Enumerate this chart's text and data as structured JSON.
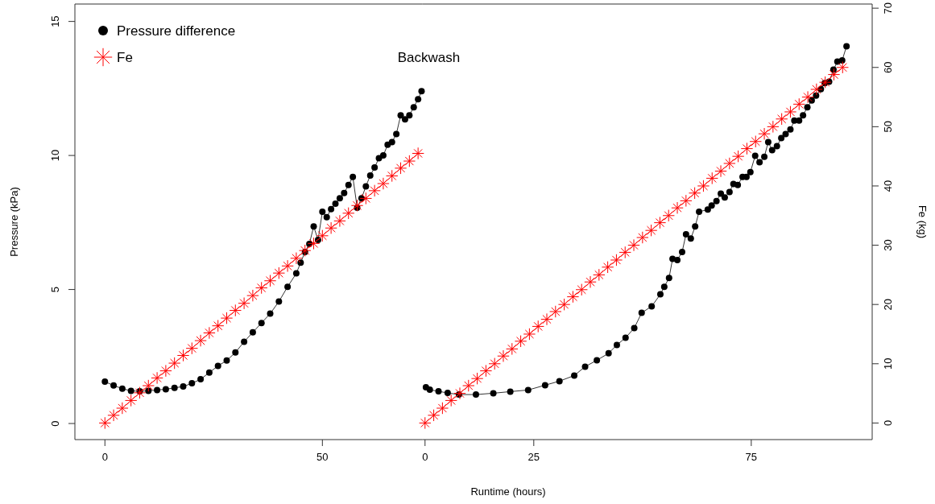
{
  "chart_data": [
    {
      "type": "line",
      "xlabel": "Runtime (hours)",
      "ylabel": "Pressure (kPa)",
      "xlim": [
        -6.9,
        73.0
      ],
      "xticks": [
        0,
        50
      ],
      "ylim": [
        -0.6,
        15.65
      ],
      "yticks": [
        0,
        5,
        10,
        15
      ],
      "y2lim": [
        -2.8,
        70.7
      ],
      "legend": "top left",
      "line_style": "solid",
      "series": [
        {
          "name": "Pressure difference",
          "color": "#000000",
          "marker": "circle",
          "x": [
            0,
            2,
            4,
            6,
            8,
            10,
            12,
            14,
            16,
            18,
            20,
            22,
            24,
            26,
            28,
            30,
            32,
            34,
            36,
            38,
            40,
            42,
            44,
            45,
            46,
            47,
            48,
            49,
            50,
            51,
            52,
            53,
            54,
            55,
            56,
            57,
            58,
            59,
            60,
            61,
            62,
            63,
            64,
            65,
            66,
            67,
            68,
            69,
            70,
            71,
            72,
            72.8
          ],
          "values": [
            1.56,
            1.42,
            1.3,
            1.22,
            1.2,
            1.22,
            1.25,
            1.28,
            1.33,
            1.38,
            1.5,
            1.65,
            1.9,
            2.15,
            2.35,
            2.65,
            3.05,
            3.4,
            3.75,
            4.1,
            4.55,
            5.1,
            5.6,
            6.0,
            6.4,
            6.7,
            7.35,
            6.85,
            7.9,
            7.7,
            8.0,
            8.2,
            8.4,
            8.6,
            8.9,
            9.2,
            8.05,
            8.4,
            8.85,
            9.25,
            9.55,
            9.9,
            10.0,
            10.4,
            10.5,
            10.8,
            11.5,
            11.35,
            11.5,
            11.8,
            12.1,
            12.4
          ]
        },
        {
          "name": "Fe",
          "color": "#ff0000",
          "marker": "cross",
          "axis": "y2",
          "x": [
            0,
            2,
            4,
            6,
            8,
            10,
            12,
            14,
            16,
            18,
            20,
            22,
            24,
            26,
            28,
            30,
            32,
            34,
            36,
            38,
            40,
            42,
            44,
            46,
            48,
            50,
            52,
            54,
            56,
            58,
            60,
            62,
            64,
            66,
            68,
            70,
            72
          ],
          "values": [
            0,
            1.3,
            2.5,
            3.8,
            5.1,
            6.3,
            7.6,
            8.8,
            10.1,
            11.4,
            12.6,
            13.9,
            15.2,
            16.4,
            17.7,
            19.0,
            20.2,
            21.5,
            22.8,
            24.0,
            25.3,
            26.5,
            27.8,
            29.1,
            30.3,
            31.6,
            32.9,
            34.1,
            35.4,
            36.7,
            37.9,
            39.2,
            40.4,
            41.7,
            43.0,
            44.2,
            45.5
          ]
        }
      ]
    },
    {
      "type": "line",
      "y2label": "Fe (kg)",
      "annotations": [
        "Backwash"
      ],
      "xlim": [
        -0.6,
        102.8
      ],
      "xticks": [
        0,
        25,
        75
      ],
      "ylim": [
        -0.6,
        15.65
      ],
      "y2lim": [
        -2.8,
        70.7
      ],
      "y2ticks": [
        0,
        10,
        20,
        30,
        40,
        50,
        60,
        70
      ],
      "line_style": "solid",
      "series": [
        {
          "color": "#000000",
          "marker": "circle",
          "x": [
            0.2,
            1.1,
            3.1,
            5.2,
            7.8,
            11.7,
            15.7,
            19.6,
            23.7,
            27.6,
            30.9,
            34.3,
            36.8,
            39.5,
            42.2,
            44.1,
            46.1,
            48.1,
            49.8,
            52.1,
            54.1,
            55.0,
            56.1,
            56.9,
            58.0,
            59.1,
            60.0,
            61.1,
            62.1,
            63.0,
            65.0,
            65.9,
            67.0,
            68.0,
            68.9,
            70.0,
            70.9,
            71.9,
            73.0,
            73.9,
            74.8,
            75.9,
            76.9,
            78.0,
            78.9,
            79.8,
            80.9,
            81.9,
            82.9,
            84.0,
            84.9,
            86.0,
            86.9,
            87.9,
            88.9,
            89.9,
            91.0,
            91.9,
            92.9,
            93.9,
            94.8,
            95.9,
            96.9
          ],
          "values": [
            1.35,
            1.26,
            1.2,
            1.14,
            1.08,
            1.08,
            1.13,
            1.19,
            1.25,
            1.43,
            1.58,
            1.79,
            2.12,
            2.36,
            2.62,
            2.93,
            3.2,
            3.56,
            4.13,
            4.37,
            4.82,
            5.1,
            5.43,
            6.14,
            6.1,
            6.4,
            7.06,
            6.9,
            7.35,
            7.9,
            7.98,
            8.13,
            8.3,
            8.58,
            8.43,
            8.64,
            8.94,
            8.9,
            9.2,
            9.2,
            9.38,
            9.99,
            9.75,
            9.95,
            10.5,
            10.2,
            10.35,
            10.65,
            10.8,
            10.97,
            11.3,
            11.3,
            11.5,
            11.8,
            12.05,
            12.23,
            12.47,
            12.7,
            12.75,
            13.2,
            13.5,
            13.55,
            14.07
          ]
        },
        {
          "color": "#ff0000",
          "marker": "cross",
          "axis": "y2",
          "x": [
            0,
            2,
            4,
            6,
            8,
            10,
            12,
            14,
            16,
            18,
            20,
            22,
            24,
            26,
            28,
            30,
            32,
            34,
            36,
            38,
            40,
            42,
            44,
            46,
            48,
            50,
            52,
            54,
            56,
            58,
            60,
            62,
            64,
            66,
            68,
            70,
            72,
            74,
            76,
            78,
            80,
            82,
            84,
            86,
            88,
            90,
            92,
            94,
            96
          ],
          "values": [
            0,
            1.3,
            2.5,
            3.8,
            5.0,
            6.3,
            7.5,
            8.8,
            10.0,
            11.3,
            12.5,
            13.8,
            15.0,
            16.3,
            17.5,
            18.8,
            20.0,
            21.3,
            22.5,
            23.8,
            25.0,
            26.3,
            27.5,
            28.8,
            30.0,
            31.3,
            32.5,
            33.8,
            35.0,
            36.3,
            37.5,
            38.8,
            40.0,
            41.3,
            42.5,
            43.8,
            45.0,
            46.3,
            47.5,
            48.8,
            50.0,
            51.3,
            52.5,
            53.8,
            55.0,
            56.3,
            57.5,
            58.8,
            60.0
          ]
        }
      ]
    }
  ]
}
